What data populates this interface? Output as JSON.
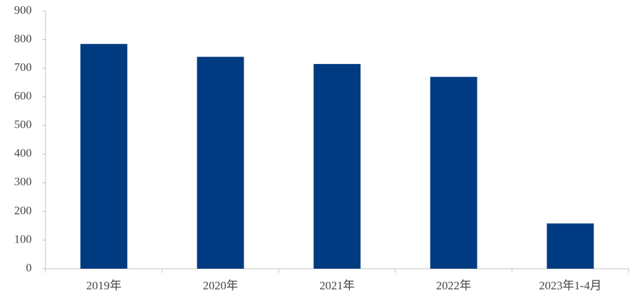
{
  "chart_data": {
    "type": "bar",
    "categories": [
      "2019年",
      "2020年",
      "2021年",
      "2022年",
      "2023年1-4月"
    ],
    "values": [
      785,
      740,
      715,
      670,
      158
    ],
    "color": "#003a80",
    "ylim": [
      0,
      900
    ],
    "yticks": [
      0,
      100,
      200,
      300,
      400,
      500,
      600,
      700,
      800,
      900
    ],
    "grid": false
  }
}
